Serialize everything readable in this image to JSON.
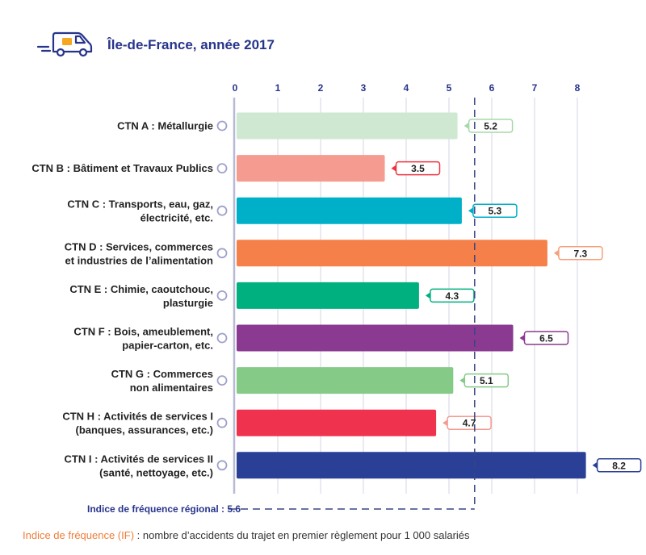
{
  "header": {
    "title": "Île-de-France, année 2017",
    "icon": "van-icon",
    "accent_color": "#27348b"
  },
  "chart_data": {
    "type": "bar",
    "orientation": "horizontal",
    "title": "Île-de-France, année 2017",
    "xlabel": "",
    "ylabel": "",
    "xlim": [
      0,
      8
    ],
    "ticks": [
      0,
      1,
      2,
      3,
      4,
      5,
      6,
      7,
      8
    ],
    "grid": true,
    "categories": [
      [
        "CTN A : Métallurgie"
      ],
      [
        "CTN B : Bâtiment et Travaux Publics"
      ],
      [
        "CTN C : Transports, eau, gaz,",
        "électricité, etc."
      ],
      [
        "CTN D : Services, commerces",
        "et industries de l’alimentation"
      ],
      [
        "CTN E : Chimie, caoutchouc,",
        "plasturgie"
      ],
      [
        "CTN F : Bois, ameublement,",
        "papier-carton, etc."
      ],
      [
        "CTN G : Commerces",
        "non alimentaires"
      ],
      [
        "CTN H : Activités de services I",
        "(banques, assurances, etc.)"
      ],
      [
        "CTN I : Activités de services II",
        "(santé, nettoyage, etc.)"
      ]
    ],
    "values": [
      5.2,
      3.5,
      5.3,
      7.3,
      4.3,
      6.5,
      5.1,
      4.7,
      8.2
    ],
    "value_labels": [
      "5.2",
      "3.5",
      "5.3",
      "7.3",
      "4.3",
      "6.5",
      "5.1",
      "4.7",
      "8.2"
    ],
    "colors": [
      "#cfe8d1",
      "#f59b8f",
      "#00afc8",
      "#f5804a",
      "#00b07e",
      "#8a3a90",
      "#85ca87",
      "#ef334f",
      "#2a3f96"
    ],
    "label_border_colors": [
      "#a7d8a8",
      "#ef3340",
      "#00afc8",
      "#f5a07a",
      "#00b07e",
      "#8a3a90",
      "#85ca87",
      "#f59b8f",
      "#2a3f96"
    ],
    "reference_line": {
      "value": 5.6,
      "label": "Indice de fréquence régional : 5.6",
      "style": "dashed",
      "color": "#3a4580"
    }
  },
  "footnote": {
    "highlight": "Indice de fréquence (IF)",
    "text": " : nombre d’accidents du trajet en premier règlement pour 1 000 salariés"
  }
}
